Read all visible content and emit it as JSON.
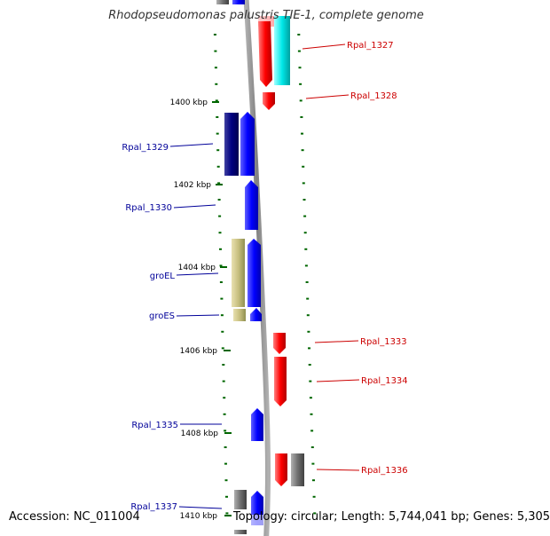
{
  "title": "Rhodopseudomonas palustris TIE-1, complete genome",
  "footer": {
    "accession": "Accession: NC_011004",
    "stats": "Topology: circular; Length: 5,744,041 bp; Genes: 5,305"
  },
  "ticks": [
    "1400 kbp",
    "1402 kbp",
    "1404 kbp",
    "1406 kbp",
    "1408 kbp",
    "1410 kbp"
  ],
  "genes": [
    {
      "label": "Rpal_1327",
      "color": "#cc0000"
    },
    {
      "label": "Rpal_1328",
      "color": "#cc0000"
    },
    {
      "label": "Rpal_1329",
      "color": "#000099"
    },
    {
      "label": "Rpal_1330",
      "color": "#000099"
    },
    {
      "label": "groEL",
      "color": "#000099"
    },
    {
      "label": "groES",
      "color": "#000099"
    },
    {
      "label": "Rpal_1333",
      "color": "#cc0000"
    },
    {
      "label": "Rpal_1334",
      "color": "#cc0000"
    },
    {
      "label": "Rpal_1335",
      "color": "#000099"
    },
    {
      "label": "Rpal_1336",
      "color": "#cc0000"
    },
    {
      "label": "Rpal_1337",
      "color": "#000099"
    }
  ],
  "colors": {
    "forward_strand": "#0000ff",
    "reverse_strand": "#ff0000",
    "rrna_like": "#00e0e0",
    "groel_like": "#c8c080",
    "other": "#707070",
    "dark_blue": "#000080",
    "tick_marks": "#006600",
    "backbone": "#888888"
  }
}
